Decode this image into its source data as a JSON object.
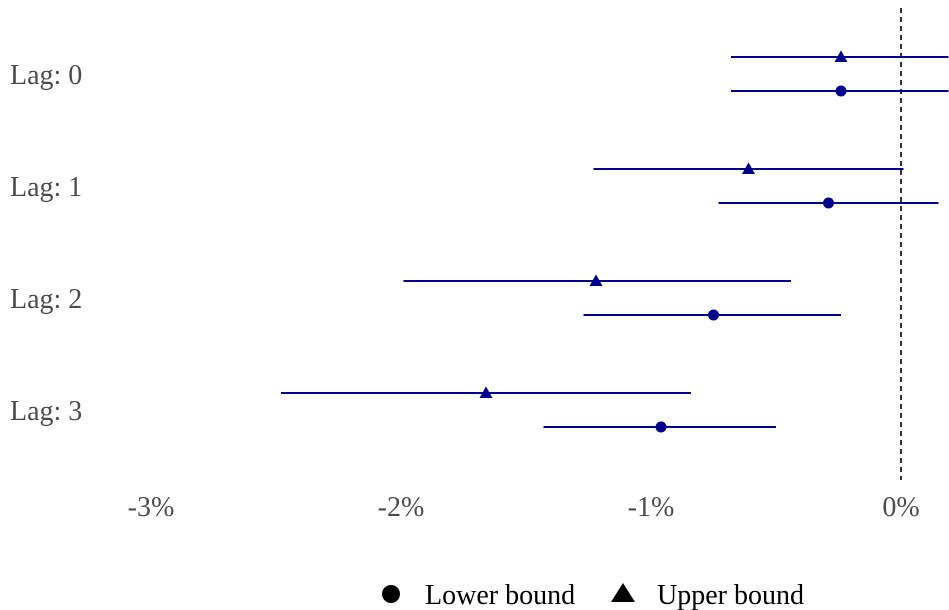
{
  "chart_data": {
    "type": "forest",
    "title": "",
    "xlabel": "",
    "ylabel": "",
    "xlim": [
      -3.0,
      0.19
    ],
    "x_ticks": [
      {
        "value": -3,
        "label": "-3%"
      },
      {
        "value": -2,
        "label": "-2%"
      },
      {
        "value": -1,
        "label": "-1%"
      },
      {
        "value": 0,
        "label": "0%"
      }
    ],
    "reference_line": {
      "x": 0,
      "style": "dashed"
    },
    "categories": [
      "Lag: 0",
      "Lag: 1",
      "Lag: 2",
      "Lag: 3"
    ],
    "series": [
      {
        "name": "Lower bound",
        "marker": "circle",
        "color": "#00008B",
        "points": [
          {
            "category": "Lag: 0",
            "estimate": -0.24,
            "lower": -0.68,
            "upper": 0.19
          },
          {
            "category": "Lag: 1",
            "estimate": -0.29,
            "lower": -0.73,
            "upper": 0.15
          },
          {
            "category": "Lag: 2",
            "estimate": -0.75,
            "lower": -1.27,
            "upper": -0.24
          },
          {
            "category": "Lag: 3",
            "estimate": -0.96,
            "lower": -1.43,
            "upper": -0.5
          }
        ]
      },
      {
        "name": "Upper bound",
        "marker": "triangle",
        "color": "#00008B",
        "points": [
          {
            "category": "Lag: 0",
            "estimate": -0.24,
            "lower": -0.68,
            "upper": 0.19
          },
          {
            "category": "Lag: 1",
            "estimate": -0.61,
            "lower": -1.23,
            "upper": 0.01
          },
          {
            "category": "Lag: 2",
            "estimate": -1.22,
            "lower": -1.99,
            "upper": -0.44
          },
          {
            "category": "Lag: 3",
            "estimate": -1.66,
            "lower": -2.48,
            "upper": -0.84
          }
        ]
      }
    ],
    "legend": {
      "position": "bottom"
    }
  }
}
